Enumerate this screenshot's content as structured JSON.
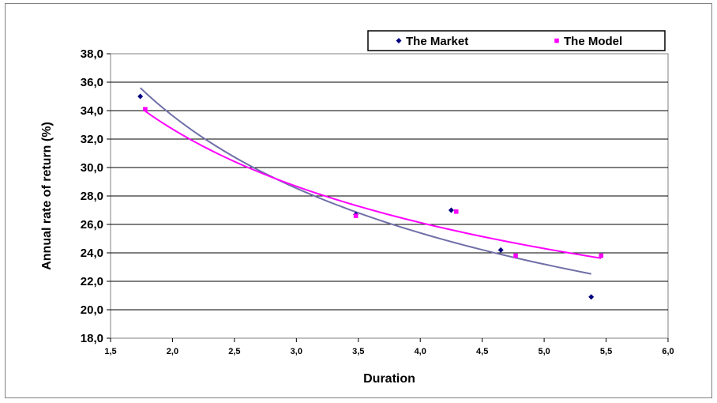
{
  "chart_data": {
    "type": "scatter",
    "title": "",
    "xlabel": "Duration",
    "ylabel": "Annual rate of return (%)",
    "xlim": [
      1.5,
      6.0
    ],
    "ylim": [
      18.0,
      38.0
    ],
    "xticks": [
      "1,5",
      "2,0",
      "2,5",
      "3,0",
      "3,5",
      "4,0",
      "4,5",
      "5,0",
      "5,5",
      "6,0"
    ],
    "yticks": [
      "18,0",
      "20,0",
      "22,0",
      "24,0",
      "26,0",
      "28,0",
      "30,0",
      "32,0",
      "34,0",
      "36,0",
      "38,0"
    ],
    "grid": "horizontal",
    "legend_position": "top-right",
    "series": [
      {
        "name": "The Market",
        "color": "#000080",
        "marker": "diamond",
        "x": [
          1.74,
          3.48,
          4.25,
          4.65,
          5.38
        ],
        "y": [
          35.0,
          26.7,
          27.0,
          24.2,
          20.9
        ],
        "trendline": {
          "type": "power",
          "color": "#6f6fa8",
          "x_range": [
            1.74,
            5.38
          ]
        }
      },
      {
        "name": "The Model",
        "color": "#ff00ff",
        "marker": "square",
        "x": [
          1.78,
          3.48,
          4.29,
          4.77,
          5.46
        ],
        "y": [
          34.1,
          26.6,
          26.9,
          23.8,
          23.8
        ],
        "trendline": {
          "type": "power",
          "color": "#ff00ff",
          "x_range": [
            1.78,
            5.46
          ]
        }
      }
    ]
  }
}
